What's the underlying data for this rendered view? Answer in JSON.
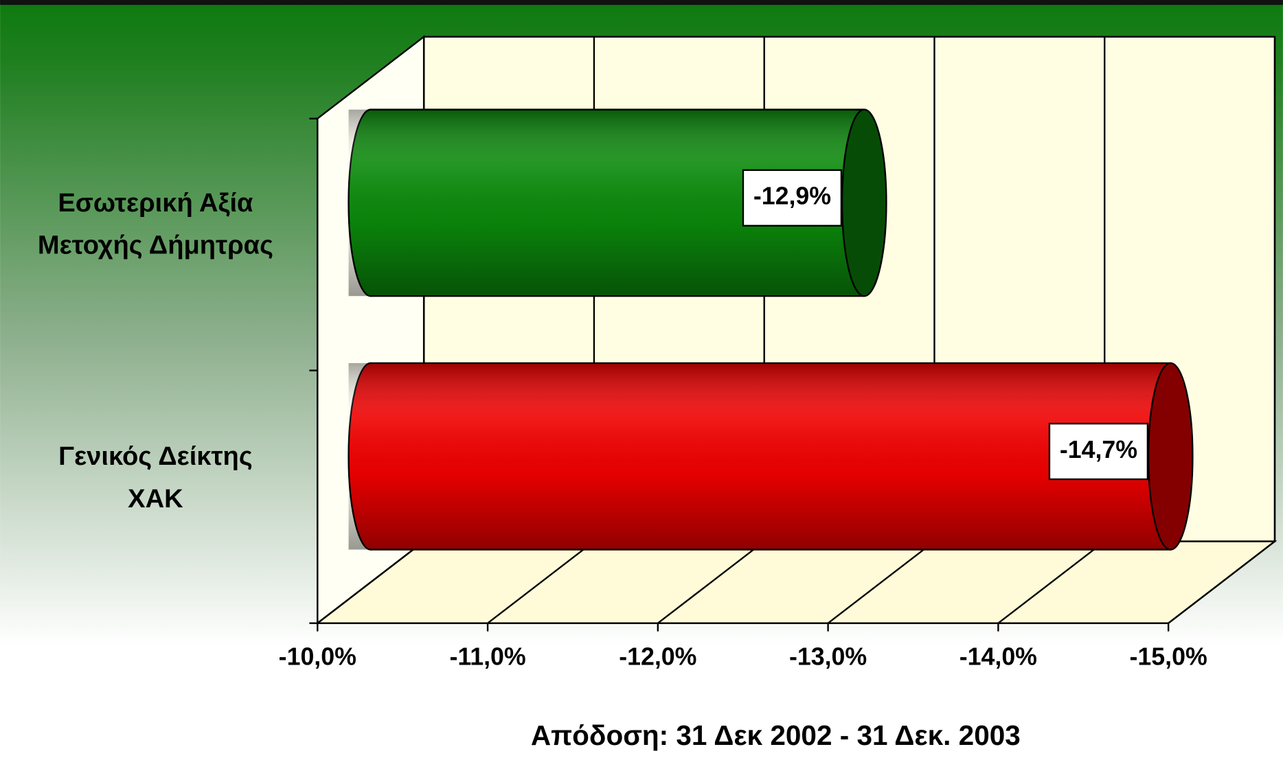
{
  "chart_data": {
    "type": "bar3d",
    "x_label": "Απόδοση: 31 Δεκ 2002 - 31 Δεκ. 2003",
    "categories": [
      "Εσωτερική Αξία\nΜετοχής Δήμητρας",
      "Γενικός Δείκτης\nΧΑΚ"
    ],
    "values": [
      -12.9,
      -14.7
    ],
    "value_labels": [
      "-12,9%",
      "-14,7%"
    ],
    "colors": [
      "#0b8a0b",
      "#f00000"
    ],
    "xlim": [
      -10,
      -15
    ],
    "xticks": [
      {
        "value": -10,
        "label": "-10,0%"
      },
      {
        "value": -11,
        "label": "-11,0%"
      },
      {
        "value": -12,
        "label": "-12,0%"
      },
      {
        "value": -13,
        "label": "-13,0%"
      },
      {
        "value": -14,
        "label": "-14,0%"
      },
      {
        "value": -15,
        "label": "-15,0%"
      }
    ],
    "grid": true
  }
}
